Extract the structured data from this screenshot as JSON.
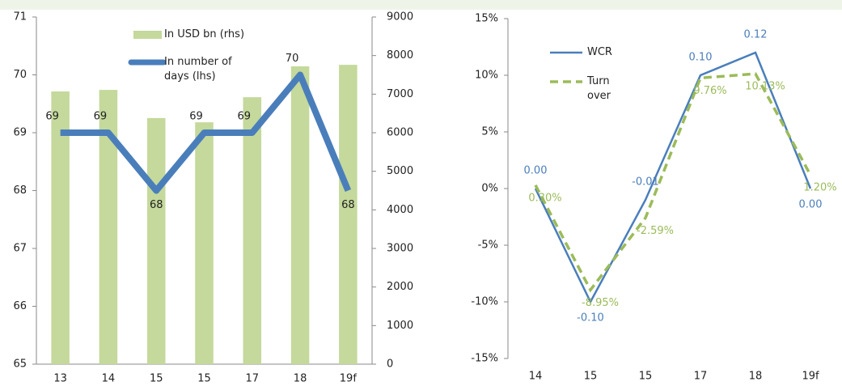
{
  "chart_data": [
    {
      "type": "bar",
      "categories": [
        "13",
        "14",
        "15",
        "15",
        "17",
        "18",
        "19f"
      ],
      "series": [
        {
          "name": "In USD bn (rhs)",
          "type": "bar",
          "axis": "y2",
          "color": "#c4d99b",
          "values": [
            7070,
            7110,
            6380,
            6270,
            6920,
            7720,
            7760
          ]
        },
        {
          "name": "In number of days (lhs)",
          "type": "line",
          "axis": "y",
          "color": "#4a7ebb",
          "values": [
            69,
            69,
            68,
            69,
            69,
            70,
            68
          ]
        }
      ],
      "ylim": [
        65,
        71
      ],
      "yticks": [
        65,
        66,
        67,
        68,
        69,
        70,
        71
      ],
      "y2lim": [
        0,
        9000
      ],
      "y2ticks": [
        0,
        1000,
        2000,
        3000,
        4000,
        5000,
        6000,
        7000,
        8000,
        9000
      ]
    },
    {
      "type": "line",
      "categories": [
        "14",
        "15",
        "15",
        "17",
        "18",
        "19f"
      ],
      "series": [
        {
          "name": "WCR",
          "color": "#4a7ebb",
          "dash": false,
          "values": [
            0,
            -10,
            -1,
            10,
            12,
            0
          ],
          "value_labels": [
            "0.00",
            "-0.10",
            "-0.01",
            "0.10",
            "0.12",
            "0.00"
          ]
        },
        {
          "name": "Turn over",
          "color": "#9bbb59",
          "dash": true,
          "values": [
            0.3,
            -8.95,
            -2.59,
            9.76,
            10.13,
            1.2
          ],
          "value_labels": [
            "0.30%",
            "-8.95%",
            "-2.59%",
            "9.76%",
            "10.13%",
            "1.20%"
          ]
        }
      ],
      "ylim": [
        -15,
        15
      ],
      "yticks": [
        {
          "value": -15,
          "label": "-15%"
        },
        {
          "value": -10,
          "label": "-10%"
        },
        {
          "value": -5,
          "label": "-5%"
        },
        {
          "value": 0,
          "label": "0%"
        },
        {
          "value": 5,
          "label": "5%"
        },
        {
          "value": 10,
          "label": "10%"
        },
        {
          "value": 15,
          "label": "15%"
        }
      ]
    }
  ]
}
